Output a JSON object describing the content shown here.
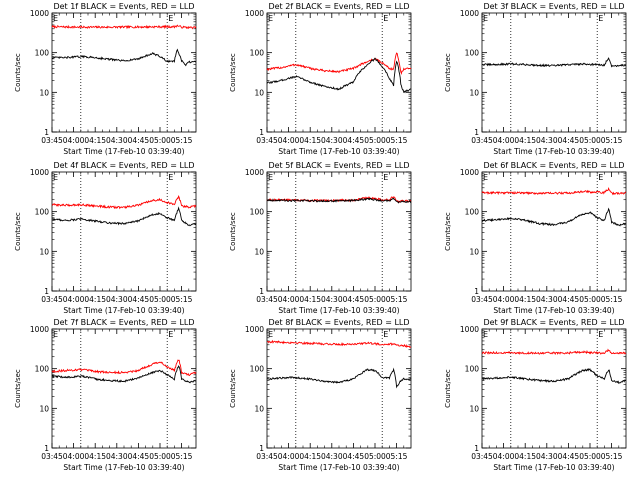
{
  "window": {
    "background": "#ffffff"
  },
  "shared": {
    "ylabel": "Counts/sec",
    "xlabel": "Start Time (17-Feb-10 03:39:40)",
    "x_ticks": [
      "03:45",
      "04:00",
      "04:15",
      "04:30",
      "04:45",
      "05:00",
      "05:15"
    ],
    "y_ticks": [
      "1",
      "10",
      "100",
      "1000"
    ],
    "ylim": [
      1,
      1000
    ],
    "y_scale": "log",
    "x_range_minutes": [
      0,
      100
    ],
    "marker_letter": "E",
    "marker_positions_minutes": [
      0,
      80
    ],
    "dotted_lines_minutes": [
      20,
      80
    ],
    "colors": {
      "events": "#000000",
      "lld": "#ff0000"
    }
  },
  "chart_data": [
    {
      "type": "line",
      "title": "Det 1f BLACK = Events, RED = LLD",
      "series": [
        {
          "name": "Events",
          "color": "#000000",
          "x": [
            0,
            10,
            20,
            30,
            40,
            50,
            60,
            70,
            75,
            80,
            85,
            87,
            90,
            93,
            95,
            100
          ],
          "values": [
            75,
            75,
            80,
            75,
            68,
            62,
            70,
            95,
            80,
            60,
            62,
            115,
            62,
            48,
            58,
            58
          ]
        },
        {
          "name": "LLD",
          "color": "#ff0000",
          "x": [
            0,
            20,
            40,
            60,
            80,
            85,
            87,
            90,
            95,
            100
          ],
          "values": [
            450,
            440,
            440,
            445,
            450,
            450,
            480,
            440,
            430,
            430
          ]
        }
      ]
    },
    {
      "type": "line",
      "title": "Det 2f BLACK = Events, RED = LLD",
      "series": [
        {
          "name": "Events",
          "color": "#000000",
          "x": [
            0,
            10,
            20,
            30,
            40,
            50,
            60,
            70,
            75,
            80,
            85,
            88,
            90,
            93,
            95,
            100
          ],
          "values": [
            17,
            20,
            25,
            18,
            14,
            12,
            18,
            50,
            70,
            45,
            22,
            15,
            60,
            15,
            10,
            12
          ]
        },
        {
          "name": "LLD",
          "color": "#ff0000",
          "x": [
            0,
            10,
            20,
            30,
            40,
            50,
            60,
            70,
            75,
            80,
            85,
            88,
            90,
            93,
            95,
            100
          ],
          "values": [
            38,
            42,
            50,
            40,
            35,
            33,
            40,
            60,
            70,
            55,
            40,
            38,
            100,
            30,
            38,
            40
          ]
        }
      ]
    },
    {
      "type": "line",
      "title": "Det 3f BLACK = Events, RED = LLD",
      "series": [
        {
          "name": "Events",
          "color": "#000000",
          "x": [
            0,
            10,
            20,
            30,
            40,
            50,
            60,
            70,
            80,
            85,
            88,
            90,
            95,
            100
          ],
          "values": [
            50,
            50,
            52,
            50,
            48,
            47,
            50,
            52,
            50,
            48,
            75,
            45,
            48,
            48
          ]
        }
      ]
    },
    {
      "type": "line",
      "title": "Det 4f BLACK = Events, RED = LLD",
      "series": [
        {
          "name": "Events",
          "color": "#000000",
          "x": [
            0,
            10,
            20,
            30,
            40,
            50,
            60,
            70,
            75,
            80,
            85,
            88,
            90,
            95,
            100
          ],
          "values": [
            65,
            60,
            65,
            58,
            52,
            50,
            58,
            85,
            90,
            70,
            60,
            120,
            60,
            45,
            50
          ]
        },
        {
          "name": "LLD",
          "color": "#ff0000",
          "x": [
            0,
            10,
            20,
            30,
            40,
            50,
            60,
            70,
            75,
            80,
            85,
            88,
            90,
            95,
            100
          ],
          "values": [
            150,
            145,
            150,
            140,
            130,
            128,
            145,
            190,
            200,
            170,
            150,
            240,
            140,
            130,
            140
          ]
        }
      ]
    },
    {
      "type": "line",
      "title": "Det 5f BLACK = Events, RED = LLD",
      "series": [
        {
          "name": "Events",
          "color": "#000000",
          "x": [
            0,
            20,
            40,
            60,
            70,
            80,
            85,
            88,
            90,
            95,
            100
          ],
          "values": [
            195,
            190,
            185,
            190,
            210,
            190,
            185,
            220,
            175,
            180,
            180
          ]
        },
        {
          "name": "LLD",
          "color": "#ff0000",
          "x": [
            0,
            20,
            40,
            60,
            70,
            80,
            85,
            88,
            90,
            95,
            100
          ],
          "values": [
            200,
            195,
            190,
            195,
            225,
            200,
            195,
            245,
            180,
            185,
            185
          ]
        }
      ]
    },
    {
      "type": "line",
      "title": "Det 6f BLACK = Events, RED = LLD",
      "series": [
        {
          "name": "Events",
          "color": "#000000",
          "x": [
            0,
            10,
            20,
            30,
            40,
            50,
            60,
            70,
            75,
            80,
            85,
            88,
            90,
            95,
            100
          ],
          "values": [
            60,
            62,
            68,
            60,
            50,
            47,
            55,
            85,
            95,
            70,
            60,
            115,
            55,
            45,
            50
          ]
        },
        {
          "name": "LLD",
          "color": "#ff0000",
          "x": [
            0,
            20,
            40,
            60,
            70,
            80,
            85,
            88,
            90,
            95,
            100
          ],
          "values": [
            300,
            300,
            290,
            295,
            320,
            310,
            300,
            380,
            290,
            290,
            295
          ]
        }
      ]
    },
    {
      "type": "line",
      "title": "Det 7f BLACK = Events, RED = LLD",
      "series": [
        {
          "name": "Events",
          "color": "#000000",
          "x": [
            0,
            10,
            20,
            30,
            40,
            50,
            60,
            70,
            75,
            80,
            85,
            88,
            90,
            95,
            100
          ],
          "values": [
            65,
            60,
            65,
            55,
            50,
            48,
            58,
            80,
            90,
            70,
            55,
            120,
            55,
            45,
            50
          ]
        },
        {
          "name": "LLD",
          "color": "#ff0000",
          "x": [
            0,
            10,
            20,
            30,
            40,
            50,
            60,
            70,
            75,
            80,
            85,
            88,
            90,
            95,
            100
          ],
          "values": [
            85,
            90,
            95,
            85,
            80,
            80,
            90,
            130,
            150,
            110,
            90,
            170,
            80,
            70,
            80
          ]
        }
      ]
    },
    {
      "type": "line",
      "title": "Det 8f BLACK = Events, RED = LLD",
      "series": [
        {
          "name": "Events",
          "color": "#000000",
          "x": [
            0,
            10,
            20,
            30,
            40,
            50,
            60,
            70,
            75,
            80,
            85,
            88,
            90,
            93,
            95,
            100
          ],
          "values": [
            55,
            58,
            60,
            55,
            48,
            45,
            55,
            95,
            90,
            60,
            58,
            95,
            35,
            50,
            55,
            55
          ]
        },
        {
          "name": "LLD",
          "color": "#ff0000",
          "x": [
            0,
            20,
            40,
            50,
            60,
            70,
            80,
            85,
            90,
            95,
            100
          ],
          "values": [
            480,
            450,
            420,
            410,
            420,
            440,
            410,
            420,
            400,
            380,
            360
          ]
        }
      ]
    },
    {
      "type": "line",
      "title": "Det 9f BLACK = Events, RED = LLD",
      "series": [
        {
          "name": "Events",
          "color": "#000000",
          "x": [
            0,
            10,
            20,
            30,
            40,
            50,
            60,
            70,
            75,
            80,
            85,
            88,
            90,
            95,
            100
          ],
          "values": [
            55,
            58,
            62,
            55,
            50,
            48,
            55,
            90,
            95,
            65,
            55,
            95,
            50,
            45,
            50
          ]
        },
        {
          "name": "LLD",
          "color": "#ff0000",
          "x": [
            0,
            20,
            40,
            60,
            70,
            80,
            85,
            88,
            90,
            95,
            100
          ],
          "values": [
            250,
            250,
            245,
            250,
            265,
            250,
            245,
            300,
            240,
            245,
            245
          ]
        }
      ]
    }
  ]
}
